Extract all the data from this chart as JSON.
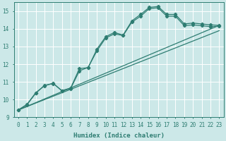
{
  "title": "",
  "xlabel": "Humidex (Indice chaleur)",
  "ylabel": "",
  "xlim": [
    -0.5,
    23.5
  ],
  "ylim": [
    9,
    15.5
  ],
  "background_color": "#cce8e8",
  "grid_color": "#ffffff",
  "line_color": "#2e7d72",
  "series_peaked": {
    "x": [
      0,
      1,
      2,
      3,
      4,
      5,
      6,
      7,
      8,
      9,
      10,
      11,
      12,
      13,
      14,
      15,
      16,
      17,
      18,
      19,
      20,
      21,
      22,
      23
    ],
    "y": [
      9.4,
      9.7,
      10.35,
      10.8,
      10.9,
      10.5,
      10.65,
      11.75,
      11.8,
      12.85,
      13.55,
      13.8,
      13.65,
      14.45,
      14.82,
      15.22,
      15.27,
      14.82,
      14.82,
      14.28,
      14.33,
      14.28,
      14.23,
      14.2
    ]
  },
  "series_peaked2": {
    "x": [
      0,
      1,
      2,
      3,
      4,
      5,
      6,
      7,
      8,
      9,
      10,
      11,
      12,
      13,
      14,
      15,
      16,
      17,
      18,
      19,
      20,
      21,
      22,
      23
    ],
    "y": [
      9.4,
      9.72,
      10.38,
      10.77,
      10.92,
      10.48,
      10.62,
      11.62,
      11.82,
      12.75,
      13.48,
      13.72,
      13.62,
      14.38,
      14.72,
      15.15,
      15.2,
      14.72,
      14.72,
      14.18,
      14.23,
      14.18,
      14.13,
      14.15
    ]
  },
  "trend1": {
    "x": [
      0,
      23
    ],
    "y": [
      9.4,
      14.2
    ]
  },
  "trend2": {
    "x": [
      0,
      23
    ],
    "y": [
      9.4,
      13.9
    ]
  },
  "yticks": [
    9,
    10,
    11,
    12,
    13,
    14,
    15
  ],
  "xticks": [
    0,
    1,
    2,
    3,
    4,
    5,
    6,
    7,
    8,
    9,
    10,
    11,
    12,
    13,
    14,
    15,
    16,
    17,
    18,
    19,
    20,
    21,
    22,
    23
  ],
  "tick_fontsize": 5.5,
  "xlabel_fontsize": 6.5,
  "linewidth": 0.9,
  "markersize": 2.2
}
